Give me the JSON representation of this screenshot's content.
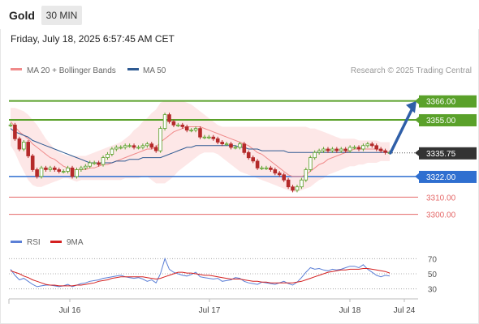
{
  "header": {
    "title": "Gold",
    "timeframe": "30 MIN",
    "datetime": "Friday, July 18, 2025 6:57:45 AM CET"
  },
  "legend": {
    "ma20": "MA 20 + Bollinger Bands",
    "ma50": "MA 50",
    "credit": "Research © 2025 Trading Central",
    "rsi": "RSI",
    "rsi_ma": "9MA"
  },
  "colors": {
    "ma20": "#f08a8a",
    "ma50": "#2e5a92",
    "bollinger_fill": "#fde4e4",
    "resistance": "#5aa12a",
    "pivot": "#2f6fd0",
    "support": "#e56a6a",
    "candle": "#b52a2a",
    "candle_up": "#5aa12a",
    "current_price_bg": "#333333",
    "rsi": "#5b7fd6",
    "rsi_ma": "#d42020",
    "arrow": "#2f5fa8"
  },
  "chart_data": [
    {
      "type": "line",
      "title": "",
      "x_ticks": [
        "Jul 16",
        "Jul 17",
        "Jul 18",
        "Jul 24"
      ],
      "ylim": [
        3288,
        3380
      ],
      "levels": [
        {
          "label": "3366.00",
          "value": 3366.0,
          "kind": "resistance"
        },
        {
          "label": "3355.00",
          "value": 3355.0,
          "kind": "resistance"
        },
        {
          "label": "3335.75",
          "value": 3335.75,
          "kind": "current"
        },
        {
          "label": "3322.00",
          "value": 3322.0,
          "kind": "pivot"
        },
        {
          "label": "3310.00",
          "value": 3310.0,
          "kind": "support"
        },
        {
          "label": "3300.00",
          "value": 3300.0,
          "kind": "support"
        }
      ],
      "price_series": [
        3352,
        3344,
        3338,
        3342,
        3334,
        3326,
        3322,
        3327,
        3326,
        3327,
        3326,
        3325,
        3325,
        3327,
        3322,
        3326,
        3327,
        3328,
        3330,
        3330,
        3329,
        3333,
        3335,
        3338,
        3339,
        3339,
        3340,
        3340,
        3339,
        3339,
        3340,
        3341,
        3339,
        3337,
        3350,
        3358,
        3354,
        3352,
        3352,
        3351,
        3349,
        3349,
        3350,
        3345,
        3345,
        3345,
        3344,
        3342,
        3341,
        3341,
        3339,
        3339,
        3341,
        3336,
        3333,
        3331,
        3327,
        3327,
        3327,
        3326,
        3324,
        3323,
        3320,
        3316,
        3314,
        3316,
        3320,
        3326,
        3333,
        3336,
        3337,
        3338,
        3337,
        3338,
        3337,
        3338,
        3337,
        3339,
        3339,
        3338,
        3340,
        3341,
        3340,
        3338,
        3337,
        3336,
        3336
      ],
      "ma20": [
        3354,
        3351,
        3348,
        3346,
        3344,
        3341,
        3339,
        3337,
        3335,
        3333,
        3332,
        3330,
        3328,
        3327,
        3326,
        3326,
        3326,
        3326,
        3327,
        3327,
        3328,
        3329,
        3329,
        3330,
        3331,
        3332,
        3333,
        3334,
        3335,
        3336,
        3337,
        3338,
        3338,
        3339,
        3342,
        3344,
        3346,
        3348,
        3349,
        3350,
        3351,
        3351,
        3351,
        3351,
        3350,
        3349,
        3348,
        3347,
        3346,
        3345,
        3344,
        3343,
        3342,
        3341,
        3340,
        3338,
        3336,
        3335,
        3333,
        3331,
        3329,
        3327,
        3325,
        3323,
        3322,
        3322,
        3322,
        3323,
        3325,
        3327,
        3329,
        3330,
        3332,
        3333,
        3334,
        3335,
        3336,
        3337,
        3338,
        3338,
        3338,
        3338,
        3338,
        3338,
        3337,
        3337,
        3336
      ],
      "ma50": [
        3350,
        3348,
        3347,
        3346,
        3345,
        3343,
        3342,
        3341,
        3340,
        3339,
        3338,
        3337,
        3336,
        3335,
        3334,
        3333,
        3332,
        3331,
        3330,
        3330,
        3330,
        3330,
        3330,
        3330,
        3331,
        3331,
        3331,
        3332,
        3332,
        3332,
        3333,
        3333,
        3333,
        3333,
        3333,
        3334,
        3335,
        3336,
        3337,
        3338,
        3339,
        3339,
        3340,
        3340,
        3340,
        3340,
        3340,
        3340,
        3340,
        3340,
        3340,
        3340,
        3339,
        3339,
        3338,
        3338,
        3338,
        3337,
        3337,
        3337,
        3337,
        3337,
        3337,
        3336,
        3336,
        3336,
        3336,
        3336,
        3336,
        3336,
        3336,
        3336,
        3336,
        3336,
        3336,
        3336,
        3336,
        3336,
        3336,
        3336,
        3336,
        3336,
        3336,
        3336,
        3336,
        3336,
        3336
      ],
      "bollinger_upper": [
        3362,
        3362,
        3361,
        3360,
        3358,
        3355,
        3352,
        3348,
        3344,
        3341,
        3338,
        3336,
        3335,
        3334,
        3334,
        3334,
        3334,
        3334,
        3335,
        3336,
        3337,
        3338,
        3339,
        3340,
        3341,
        3342,
        3344,
        3346,
        3349,
        3351,
        3354,
        3356,
        3359,
        3361,
        3365,
        3366,
        3366,
        3366,
        3366,
        3366,
        3365,
        3364,
        3362,
        3360,
        3358,
        3356,
        3354,
        3352,
        3351,
        3351,
        3351,
        3351,
        3351,
        3351,
        3351,
        3351,
        3351,
        3351,
        3351,
        3351,
        3351,
        3351,
        3351,
        3351,
        3351,
        3351,
        3351,
        3351,
        3350,
        3350,
        3349,
        3348,
        3347,
        3346,
        3345,
        3344,
        3344,
        3344,
        3344,
        3343,
        3343,
        3343,
        3343,
        3343,
        3342,
        3342,
        3342
      ],
      "bollinger_lower": [
        3340,
        3336,
        3330,
        3325,
        3320,
        3317,
        3316,
        3316,
        3317,
        3318,
        3319,
        3320,
        3321,
        3321,
        3320,
        3319,
        3320,
        3320,
        3320,
        3320,
        3320,
        3320,
        3320,
        3320,
        3320,
        3320,
        3321,
        3321,
        3321,
        3321,
        3322,
        3322,
        3320,
        3318,
        3318,
        3318,
        3320,
        3322,
        3325,
        3327,
        3329,
        3331,
        3333,
        3335,
        3336,
        3336,
        3336,
        3335,
        3333,
        3331,
        3329,
        3327,
        3325,
        3324,
        3323,
        3322,
        3321,
        3320,
        3319,
        3318,
        3317,
        3316,
        3315,
        3314,
        3313,
        3313,
        3314,
        3315,
        3316,
        3318,
        3320,
        3321,
        3323,
        3324,
        3325,
        3326,
        3327,
        3328,
        3328,
        3329,
        3329,
        3330,
        3330,
        3330,
        3331,
        3331,
        3331
      ],
      "forecast_arrow": {
        "from": 3335.75,
        "to": 3366.0
      }
    },
    {
      "type": "line",
      "title": "",
      "ylim": [
        20,
        80
      ],
      "y_ticks": [
        70,
        50,
        30
      ],
      "series": [
        {
          "name": "RSI",
          "values": [
            56,
            48,
            42,
            44,
            40,
            36,
            33,
            34,
            35,
            35,
            34,
            33,
            34,
            36,
            33,
            35,
            37,
            38,
            40,
            41,
            42,
            44,
            45,
            46,
            47,
            48,
            46,
            45,
            44,
            45,
            43,
            40,
            42,
            38,
            50,
            70,
            56,
            52,
            50,
            48,
            47,
            49,
            52,
            46,
            45,
            44,
            43,
            44,
            40,
            41,
            42,
            45,
            44,
            40,
            38,
            37,
            36,
            39,
            38,
            37,
            36,
            38,
            40,
            37,
            35,
            39,
            45,
            52,
            58,
            56,
            57,
            55,
            54,
            56,
            55,
            56,
            58,
            60,
            60,
            58,
            62,
            56,
            52,
            48,
            46,
            48,
            47
          ]
        },
        {
          "name": "9MA",
          "values": [
            54,
            52,
            50,
            47,
            45,
            42,
            40,
            38,
            36,
            35,
            35,
            34,
            34,
            34,
            34,
            35,
            35,
            36,
            37,
            38,
            40,
            41,
            42,
            44,
            45,
            46,
            46,
            46,
            46,
            46,
            46,
            45,
            44,
            43,
            44,
            46,
            48,
            50,
            52,
            52,
            51,
            51,
            50,
            49,
            48,
            48,
            47,
            46,
            45,
            44,
            43,
            43,
            43,
            42,
            41,
            40,
            40,
            39,
            39,
            38,
            38,
            38,
            38,
            38,
            38,
            39,
            40,
            42,
            44,
            46,
            48,
            50,
            52,
            53,
            54,
            55,
            55,
            56,
            56,
            56,
            57,
            57,
            56,
            55,
            54,
            53,
            51
          ]
        }
      ]
    }
  ]
}
